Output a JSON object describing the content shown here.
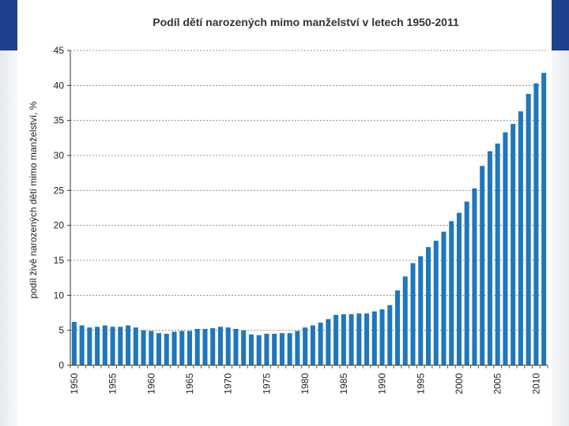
{
  "colors": {
    "bar": "#1f77bc",
    "slide_band": "#1f3f8f",
    "grid": "#7a7a7a",
    "axis": "#333333",
    "text": "#222222"
  },
  "chart_data": {
    "type": "bar",
    "title": "Podíl dětí narozených mimo manželství v letech 1950-2011",
    "xlabel": "",
    "ylabel": "podíl živě narozených dětí mimo manželství, %",
    "ylim": [
      0,
      45
    ],
    "yticks": [
      "0",
      "5",
      "10",
      "15",
      "20",
      "25",
      "30",
      "35",
      "40",
      "45"
    ],
    "xtick_labels": [
      "1950",
      "1955",
      "1960",
      "1965",
      "1970",
      "1975",
      "1980",
      "1985",
      "1990",
      "1995",
      "2000",
      "2005",
      "2010"
    ],
    "grid": true,
    "categories": [
      "1950",
      "1951",
      "1952",
      "1953",
      "1954",
      "1955",
      "1956",
      "1957",
      "1958",
      "1959",
      "1960",
      "1961",
      "1962",
      "1963",
      "1964",
      "1965",
      "1966",
      "1967",
      "1968",
      "1969",
      "1970",
      "1971",
      "1972",
      "1973",
      "1974",
      "1975",
      "1976",
      "1977",
      "1978",
      "1979",
      "1980",
      "1981",
      "1982",
      "1983",
      "1984",
      "1985",
      "1986",
      "1987",
      "1988",
      "1989",
      "1990",
      "1991",
      "1992",
      "1993",
      "1994",
      "1995",
      "1996",
      "1997",
      "1998",
      "1999",
      "2000",
      "2001",
      "2002",
      "2003",
      "2004",
      "2005",
      "2006",
      "2007",
      "2008",
      "2009",
      "2010",
      "2011"
    ],
    "values": [
      6.2,
      5.7,
      5.4,
      5.5,
      5.7,
      5.5,
      5.5,
      5.7,
      5.4,
      5.0,
      4.9,
      4.6,
      4.5,
      4.8,
      4.9,
      4.9,
      5.2,
      5.2,
      5.3,
      5.5,
      5.4,
      5.2,
      5.0,
      4.4,
      4.3,
      4.5,
      4.5,
      4.6,
      4.6,
      4.9,
      5.4,
      5.7,
      6.1,
      6.6,
      7.2,
      7.3,
      7.3,
      7.4,
      7.4,
      7.7,
      8.0,
      8.6,
      10.7,
      12.7,
      14.6,
      15.6,
      16.9,
      17.8,
      19.1,
      20.6,
      21.8,
      23.4,
      25.3,
      28.5,
      30.6,
      31.7,
      33.3,
      34.5,
      36.3,
      38.8,
      40.3,
      41.8
    ]
  }
}
